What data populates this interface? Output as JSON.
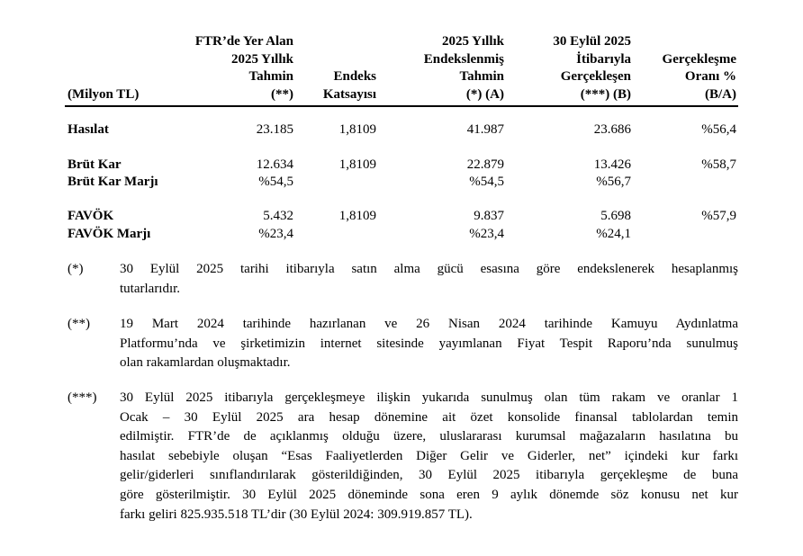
{
  "table": {
    "headers": [
      {
        "lines": [
          "(Milyon TL)"
        ]
      },
      {
        "lines": [
          "FTR’de Yer Alan",
          "2025 Yıllık",
          "Tahmin",
          "(**)"
        ]
      },
      {
        "lines": [
          "Endeks",
          "Katsayısı"
        ]
      },
      {
        "lines": [
          "2025 Yıllık",
          "Endekslenmiş",
          "Tahmin",
          "(*) (A)"
        ]
      },
      {
        "lines": [
          "30 Eylül 2025",
          "İtibarıyla",
          "Gerçekleşen",
          "(***) (B)"
        ]
      },
      {
        "lines": [
          "Gerçekleşme",
          "Oranı %",
          "(B/A)"
        ]
      }
    ],
    "rows": [
      {
        "label": "Hasılat",
        "values": [
          "23.185",
          "1,8109",
          "41.987",
          "23.686",
          "%56,4"
        ]
      },
      {
        "label": "Brüt Kar",
        "values": [
          "12.634",
          "1,8109",
          "22.879",
          "13.426",
          "%58,7"
        ]
      },
      {
        "label": "Brüt Kar Marjı",
        "values": [
          "%54,5",
          "",
          "%54,5",
          "%56,7",
          ""
        ]
      },
      {
        "label": "FAVÖK",
        "values": [
          "5.432",
          "1,8109",
          "9.837",
          "5.698",
          "%57,9"
        ]
      },
      {
        "label": "FAVÖK Marjı",
        "values": [
          "%23,4",
          "",
          "%23,4",
          "%24,1",
          ""
        ]
      }
    ]
  },
  "footnotes": [
    {
      "mark": "(*)",
      "lines": [
        "30 Eylül 2025 tarihi itibarıyla satın alma gücü esasına göre endekslenerek hesaplanmış",
        "tutarlarıdır."
      ]
    },
    {
      "mark": "(**)",
      "lines": [
        "19 Mart 2024 tarihinde hazırlanan ve 26 Nisan 2024 tarihinde Kamuyu Aydınlatma",
        "Platformu’nda ve şirketimizin internet sitesinde yayımlanan Fiyat Tespit Raporu’nda sunulmuş",
        "olan rakamlardan oluşmaktadır."
      ]
    },
    {
      "mark": "(***)",
      "lines": [
        "30 Eylül 2025 itibarıyla gerçekleşmeye ilişkin yukarıda sunulmuş olan tüm rakam ve oranlar 1",
        "Ocak – 30 Eylül 2025 ara hesap dönemine ait özet konsolide finansal tablolardan temin",
        "edilmiştir. FTR’de de açıklanmış olduğu üzere, uluslararası kurumsal mağazaların hasılatına bu",
        "hasılat sebebiyle oluşan “Esas Faaliyetlerden Diğer Gelir ve Giderler, net” içindeki kur farkı",
        "gelir/giderleri sınıflandırılarak gösterildiğinden, 30 Eylül 2025 itibarıyla gerçekleşme de buna",
        "göre gösterilmiştir. 30 Eylül 2025 döneminde sona eren 9 aylık dönemde söz konusu net kur",
        "farkı geliri 825.935.518 TL’dir (30 Eylül 2024: 309.919.857 TL)."
      ]
    }
  ]
}
